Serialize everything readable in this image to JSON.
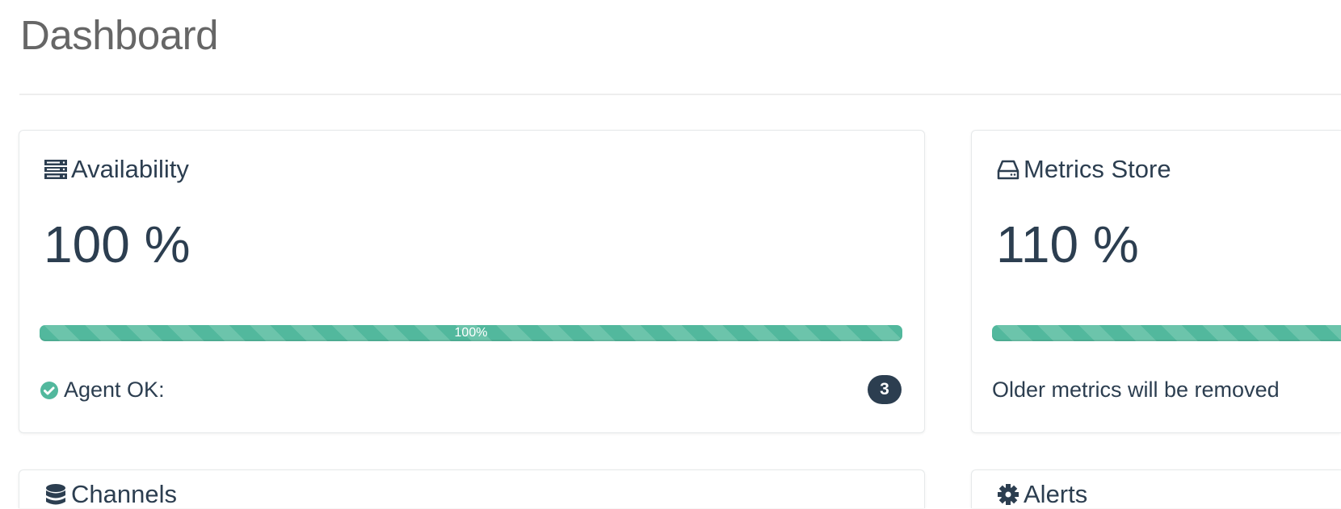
{
  "header": {
    "title": "Dashboard"
  },
  "colors": {
    "accent": "#52b89d",
    "text": "#2c3e50",
    "badge": "#2c3e50"
  },
  "cards": {
    "availability": {
      "icon": "server-icon",
      "title": "Availability",
      "value": "100 %",
      "progress_percent": 100,
      "progress_label": "100%",
      "status_icon": "check-circle-icon",
      "status_label": "Agent OK:",
      "count": "3"
    },
    "metrics_store": {
      "icon": "hard-drive-icon",
      "title": "Metrics Store",
      "value": "110 %",
      "progress_percent": 100,
      "note": "Older metrics will be removed"
    },
    "channels": {
      "icon": "database-icon",
      "title": "Channels"
    },
    "alerts": {
      "icon": "gear-icon",
      "title": "Alerts"
    }
  }
}
